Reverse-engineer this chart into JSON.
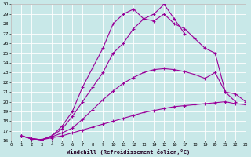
{
  "xlabel": "Windchill (Refroidissement éolien,°C)",
  "background_color": "#c8e8e8",
  "line_color": "#990099",
  "grid_color": "#ffffff",
  "xlim": [
    0,
    23
  ],
  "ylim": [
    16,
    30
  ],
  "xticks": [
    0,
    1,
    2,
    3,
    4,
    5,
    6,
    7,
    8,
    9,
    10,
    11,
    12,
    13,
    14,
    15,
    16,
    17,
    18,
    19,
    20,
    21,
    22,
    23
  ],
  "yticks": [
    16,
    17,
    18,
    19,
    20,
    21,
    22,
    23,
    24,
    25,
    26,
    27,
    28,
    29,
    30
  ],
  "lines": [
    {
      "x": [
        1,
        2,
        3,
        4,
        5,
        6,
        7,
        8,
        9,
        10,
        11,
        12,
        13,
        14,
        15,
        16,
        17,
        18,
        19,
        20,
        21,
        22,
        23
      ],
      "y": [
        16.5,
        16.2,
        16.1,
        16.3,
        16.5,
        16.8,
        17.1,
        17.4,
        17.7,
        18.0,
        18.3,
        18.6,
        18.9,
        19.1,
        19.3,
        19.5,
        19.6,
        19.7,
        19.8,
        19.9,
        20.0,
        19.8,
        19.7
      ]
    },
    {
      "x": [
        1,
        2,
        3,
        4,
        5,
        6,
        7,
        8,
        9,
        10,
        11,
        12,
        13,
        14,
        15,
        16,
        17,
        18,
        19,
        20,
        21,
        22,
        23
      ],
      "y": [
        16.5,
        16.2,
        16.1,
        16.4,
        16.8,
        17.3,
        18.2,
        19.2,
        20.2,
        21.1,
        21.9,
        22.5,
        23.0,
        23.3,
        23.4,
        23.3,
        23.1,
        22.8,
        22.4,
        23.0,
        21.0,
        20.8,
        20.0
      ]
    },
    {
      "x": [
        1,
        2,
        3,
        4,
        5,
        6,
        7,
        8,
        9,
        10,
        11,
        12,
        13,
        14,
        15,
        16,
        17,
        18,
        19,
        20,
        21,
        22
      ],
      "y": [
        16.5,
        16.2,
        16.1,
        16.5,
        17.2,
        18.5,
        20.0,
        21.5,
        23.0,
        25.0,
        26.0,
        27.5,
        28.5,
        28.3,
        29.0,
        28.0,
        27.5,
        26.5,
        25.5,
        25.0,
        21.0,
        20.0
      ]
    },
    {
      "x": [
        1,
        2,
        3,
        4,
        5,
        6,
        7,
        8,
        9,
        10,
        11,
        12,
        13,
        14,
        15,
        16,
        17
      ],
      "y": [
        16.5,
        16.2,
        16.1,
        16.5,
        17.5,
        19.0,
        21.5,
        23.5,
        25.5,
        28.0,
        29.0,
        29.5,
        28.5,
        29.0,
        30.0,
        28.5,
        27.0
      ]
    }
  ]
}
